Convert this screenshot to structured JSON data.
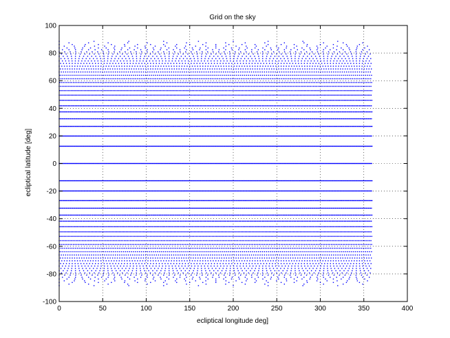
{
  "chart_data": {
    "type": "scatter",
    "title": "Grid on the sky",
    "xlabel": "ecliptical longitude deg]",
    "ylabel": "ecliptical latitude [deg]",
    "xlim": [
      0,
      400
    ],
    "ylim": [
      -100,
      100
    ],
    "xticks": [
      0,
      50,
      100,
      150,
      200,
      250,
      300,
      350,
      400
    ],
    "yticks": [
      -100,
      -80,
      -60,
      -40,
      -20,
      0,
      20,
      40,
      60,
      80,
      100
    ],
    "grid": "dotted",
    "marker_color": "#0000ff",
    "series": [
      {
        "x_range": [
          0,
          360
        ],
        "latitude_rows": [
          0,
          12.5,
          19.9,
          26.9,
          32.4,
          37.4,
          41.8,
          45.8,
          49.5,
          52.8,
          55.9,
          58.7,
          61.4,
          63.9,
          66.3,
          68.5,
          70.5,
          72.5,
          74.3,
          76,
          77.7,
          79.3,
          80.9,
          82.4,
          83.7,
          85,
          86.2,
          87.4,
          88.5,
          -12.5,
          -19.9,
          -26.9,
          -32.4,
          -37.4,
          -41.8,
          -45.8,
          -49.5,
          -52.8,
          -55.9,
          -58.7,
          -61.4,
          -63.9,
          -66.3,
          -68.5,
          -70.5,
          -72.5,
          -74.3,
          -76,
          -77.7,
          -79.3,
          -80.9,
          -82.4,
          -83.7,
          -85,
          -86.2,
          -87.4,
          -88.5
        ]
      }
    ]
  }
}
